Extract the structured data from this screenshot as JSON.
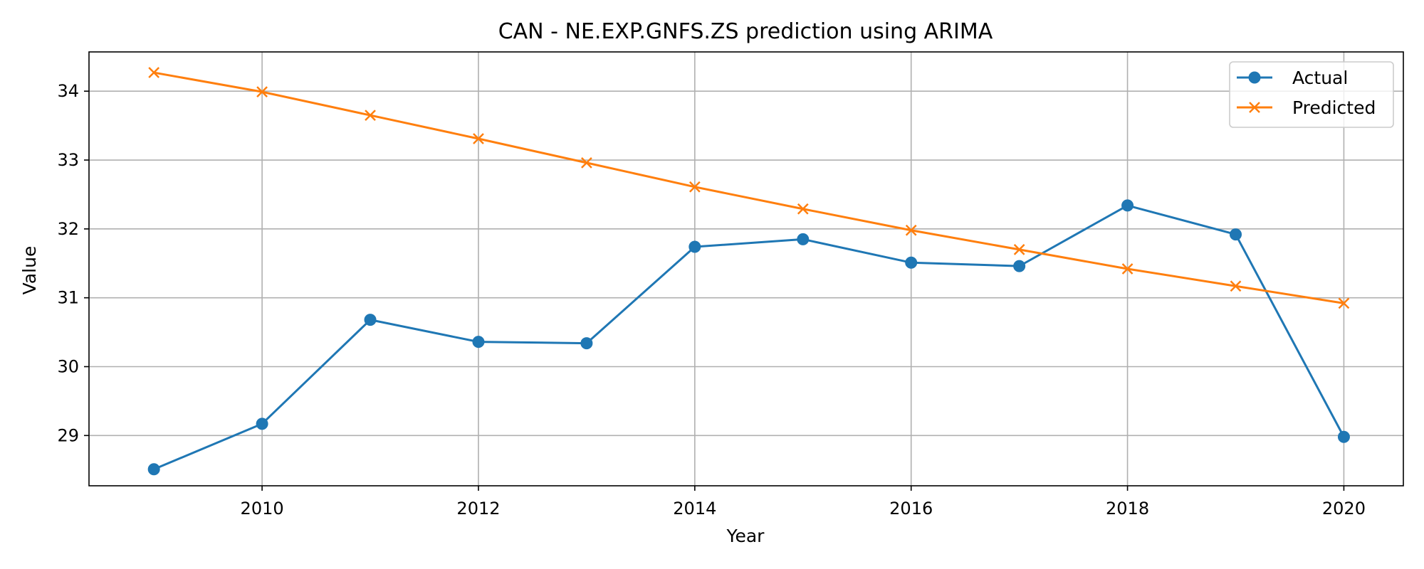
{
  "chart_data": {
    "type": "line",
    "title": "CAN - NE.EXP.GNFS.ZS prediction using ARIMA",
    "xlabel": "Year",
    "ylabel": "Value",
    "xlim": [
      2008.4,
      2020.55
    ],
    "ylim": [
      28.27,
      34.57
    ],
    "x_ticks": [
      2010,
      2012,
      2014,
      2016,
      2018,
      2020
    ],
    "y_ticks": [
      29,
      30,
      31,
      32,
      33,
      34
    ],
    "grid": true,
    "legend_position": "top-right",
    "x": [
      2009,
      2010,
      2011,
      2012,
      2013,
      2014,
      2015,
      2016,
      2017,
      2018,
      2019,
      2020
    ],
    "series": [
      {
        "name": "Actual",
        "color": "#1f77b4",
        "marker": "circle",
        "values": [
          28.51,
          29.17,
          30.68,
          30.36,
          30.34,
          31.74,
          31.85,
          31.51,
          31.46,
          32.34,
          31.92,
          28.98
        ]
      },
      {
        "name": "Predicted",
        "color": "#ff7f0e",
        "marker": "x",
        "values": [
          34.27,
          33.99,
          33.65,
          33.31,
          32.96,
          32.61,
          32.29,
          31.98,
          31.7,
          31.42,
          31.17,
          30.92
        ]
      }
    ]
  }
}
